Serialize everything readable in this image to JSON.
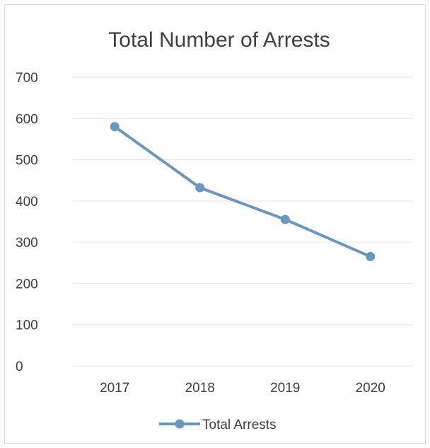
{
  "chart_data": {
    "type": "line",
    "title": "Total Number of Arrests",
    "xlabel": "",
    "ylabel": "",
    "categories": [
      "2017",
      "2018",
      "2019",
      "2020"
    ],
    "series": [
      {
        "name": "Total Arrests",
        "values": [
          580,
          432,
          355,
          265
        ],
        "color": "#6b96bd"
      }
    ],
    "ylim": [
      0,
      700
    ],
    "yticks": [
      0,
      100,
      200,
      300,
      400,
      500,
      600,
      700
    ],
    "grid": true,
    "legend_position": "bottom"
  }
}
